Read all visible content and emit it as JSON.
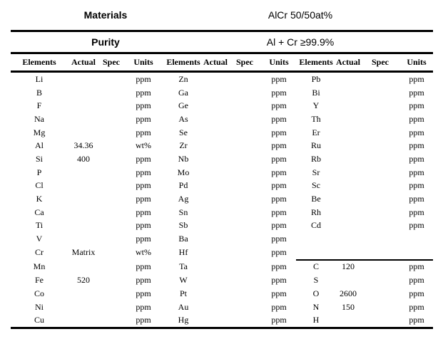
{
  "header": {
    "materials_label": "Materials",
    "materials_value": "AlCr 50/50at%",
    "purity_label": "Purity",
    "purity_value": "Al + Cr ≥99.9%"
  },
  "table": {
    "column_headers": [
      "Elements",
      "Actual",
      "Spec",
      "Units",
      "Elements",
      "Actual",
      "Spec",
      "Units",
      "Elements",
      "Actual",
      "Spec",
      "Units"
    ],
    "rows": [
      [
        "Li",
        "",
        "",
        "ppm",
        "Zn",
        "",
        "",
        "ppm",
        "Pb",
        "",
        "",
        "ppm"
      ],
      [
        "B",
        "",
        "",
        "ppm",
        "Ga",
        "",
        "",
        "ppm",
        "Bi",
        "",
        "",
        "ppm"
      ],
      [
        "F",
        "",
        "",
        "ppm",
        "Ge",
        "",
        "",
        "ppm",
        "Y",
        "",
        "",
        "ppm"
      ],
      [
        "Na",
        "",
        "",
        "ppm",
        "As",
        "",
        "",
        "ppm",
        "Th",
        "",
        "",
        "ppm"
      ],
      [
        "Mg",
        "",
        "",
        "ppm",
        "Se",
        "",
        "",
        "ppm",
        "Er",
        "",
        "",
        "ppm"
      ],
      [
        "Al",
        "34.36",
        "",
        "wt%",
        "Zr",
        "",
        "",
        "ppm",
        "Ru",
        "",
        "",
        "ppm"
      ],
      [
        "Si",
        "400",
        "",
        "ppm",
        "Nb",
        "",
        "",
        "ppm",
        "Rb",
        "",
        "",
        "ppm"
      ],
      [
        "P",
        "",
        "",
        "ppm",
        "Mo",
        "",
        "",
        "ppm",
        "Sr",
        "",
        "",
        "ppm"
      ],
      [
        "Cl",
        "",
        "",
        "ppm",
        "Pd",
        "",
        "",
        "ppm",
        "Sc",
        "",
        "",
        "ppm"
      ],
      [
        "K",
        "",
        "",
        "ppm",
        "Ag",
        "",
        "",
        "ppm",
        "Be",
        "",
        "",
        "ppm"
      ],
      [
        "Ca",
        "",
        "",
        "ppm",
        "Sn",
        "",
        "",
        "ppm",
        "Rh",
        "",
        "",
        "ppm"
      ],
      [
        "Ti",
        "",
        "",
        "ppm",
        "Sb",
        "",
        "",
        "ppm",
        "Cd",
        "",
        "",
        "ppm"
      ],
      [
        "V",
        "",
        "",
        "ppm",
        "Ba",
        "",
        "",
        "ppm",
        "",
        "",
        "",
        ""
      ],
      [
        "Cr",
        "Matrix",
        "",
        "wt%",
        "Hf",
        "",
        "",
        "ppm",
        "",
        "",
        "",
        ""
      ],
      [
        "Mn",
        "",
        "",
        "ppm",
        "Ta",
        "",
        "",
        "ppm",
        "C",
        "120",
        "",
        "ppm"
      ],
      [
        "Fe",
        "520",
        "",
        "ppm",
        "W",
        "",
        "",
        "ppm",
        "S",
        "",
        "",
        "ppm"
      ],
      [
        "Co",
        "",
        "",
        "ppm",
        "Pt",
        "",
        "",
        "ppm",
        "O",
        "2600",
        "",
        "ppm"
      ],
      [
        "Ni",
        "",
        "",
        "ppm",
        "Au",
        "",
        "",
        "ppm",
        "N",
        "150",
        "",
        "ppm"
      ],
      [
        "Cu",
        "",
        "",
        "ppm",
        "Hg",
        "",
        "",
        "ppm",
        "H",
        "",
        "",
        "ppm"
      ]
    ],
    "group3_separator": {
      "row": 14,
      "col_start": 8,
      "col_end": 11
    }
  },
  "colors": {
    "text": "#000000",
    "rule_lines": "#000000",
    "background": "#ffffff"
  }
}
